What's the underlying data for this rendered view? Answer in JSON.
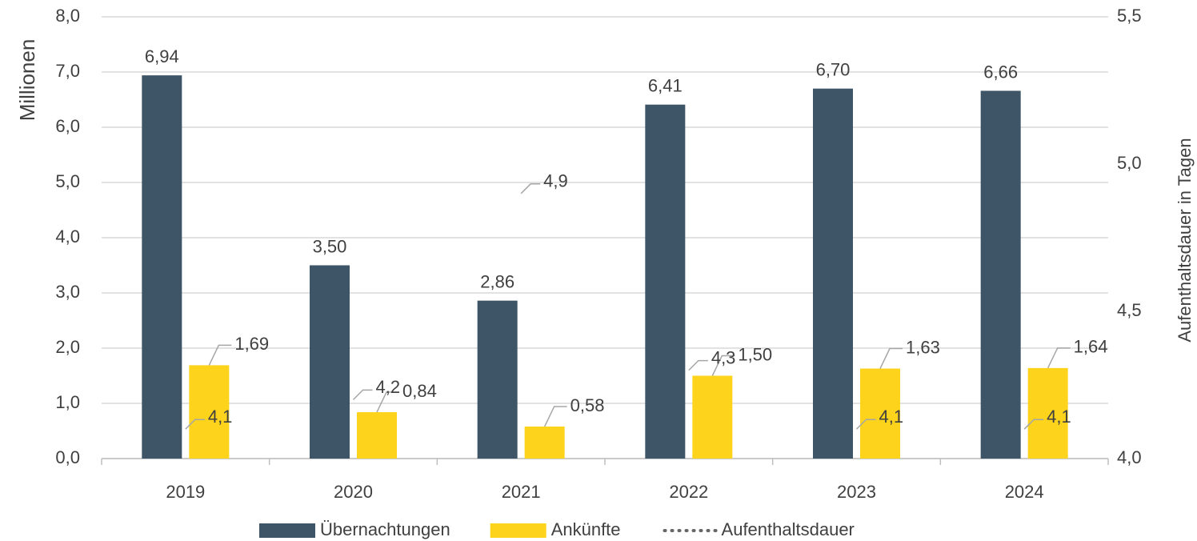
{
  "chart_data": {
    "type": "bar-line",
    "categories": [
      "2019",
      "2020",
      "2021",
      "2022",
      "2023",
      "2024"
    ],
    "ylabel": "Millionen",
    "y2label": "Aufenthaltsdauer in Tagen",
    "ylim": [
      0,
      8
    ],
    "yticks": [
      {
        "value": 0,
        "label": "0,0"
      },
      {
        "value": 1,
        "label": "1,0"
      },
      {
        "value": 2,
        "label": "2,0"
      },
      {
        "value": 3,
        "label": "3,0"
      },
      {
        "value": 4,
        "label": "4,0"
      },
      {
        "value": 5,
        "label": "5,0"
      },
      {
        "value": 6,
        "label": "6,0"
      },
      {
        "value": 7,
        "label": "7,0"
      },
      {
        "value": 8,
        "label": "8,0"
      }
    ],
    "y2lim": [
      4,
      5.5
    ],
    "y2ticks": [
      {
        "value": 4,
        "label": "4,0"
      },
      {
        "value": 4.5,
        "label": "4,5"
      },
      {
        "value": 5,
        "label": "5,0"
      },
      {
        "value": 5.5,
        "label": "5,5"
      }
    ],
    "grid": true,
    "legend": "bottom",
    "series": [
      {
        "name": "Übernachtungen",
        "type": "bar",
        "color": "#3d5566",
        "values": [
          6.94,
          3.5,
          2.86,
          6.41,
          6.7,
          6.66
        ],
        "value_labels": [
          "6,94",
          "3,50",
          "2,86",
          "6,41",
          "6,70",
          "6,66"
        ]
      },
      {
        "name": "Ankünfte",
        "type": "bar",
        "color": "#fdd31c",
        "values": [
          1.69,
          0.84,
          0.58,
          1.5,
          1.63,
          1.64
        ],
        "value_labels": [
          "1,69",
          "0,84",
          "0,58",
          "1,50",
          "1,63",
          "1,64"
        ]
      },
      {
        "name": "Aufenthaltsdauer",
        "type": "line",
        "axis": "y2",
        "color": "#666666",
        "values": [
          4.1,
          4.2,
          4.9,
          4.3,
          4.1,
          4.1
        ],
        "value_labels": [
          "4,1",
          "4,2",
          "4,9",
          "4,3",
          "4,1",
          "4,1"
        ]
      }
    ]
  }
}
